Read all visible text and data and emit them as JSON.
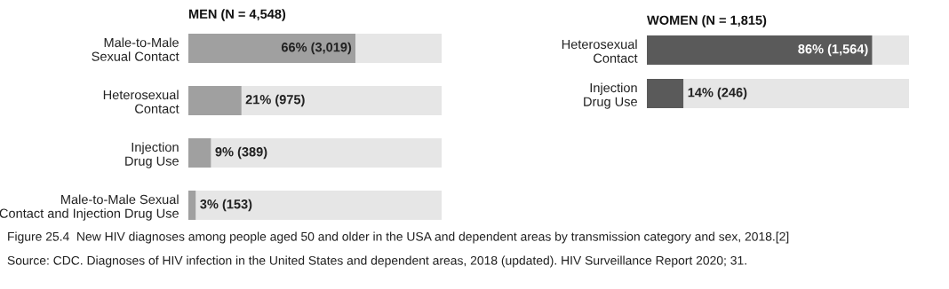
{
  "chart_data": [
    {
      "type": "bar",
      "orientation": "horizontal",
      "stacked": true,
      "title": "MEN (N = 4,548)",
      "categories": [
        "Male-to-Male\nSexual Contact",
        "Heterosexual\nContact",
        "Injection\nDrug Use",
        "Male-to-Male Sexual\nContact and Injection Drug Use"
      ],
      "series": [
        {
          "color": "#a0a0a0",
          "values": [
            66,
            21,
            9,
            3
          ],
          "value_labels": [
            "66% (3,019)",
            "21% (975)",
            "9% (389)",
            "3% (153)"
          ]
        },
        {
          "color": "#e6e6e6",
          "values": [
            34,
            79,
            91,
            97
          ]
        }
      ],
      "xlim": [
        0,
        100
      ],
      "tick_labels": "y",
      "annotations": [
        "Figure 25.4  New HIV diagnoses among people aged 50 and older in the USA and dependent areas by transmission category and sex, 2018.[2]",
        "Source: CDC. Diagnoses of HIV infection in the United States and dependent areas, 2018 (updated). HIV Surveillance Report 2020; 31."
      ]
    },
    {
      "type": "bar",
      "orientation": "horizontal",
      "stacked": true,
      "title": "WOMEN (N = 1,815)",
      "categories": [
        "Heterosexual\nContact",
        "Injection\nDrug Use"
      ],
      "series": [
        {
          "color": "#5a5a5a",
          "values": [
            86,
            14
          ],
          "value_labels": [
            "86% (1,564)",
            "14% (246)"
          ]
        },
        {
          "color": "#e6e6e6",
          "values": [
            14,
            86
          ]
        }
      ],
      "xlim": [
        0,
        100
      ],
      "tick_labels": "y"
    }
  ]
}
